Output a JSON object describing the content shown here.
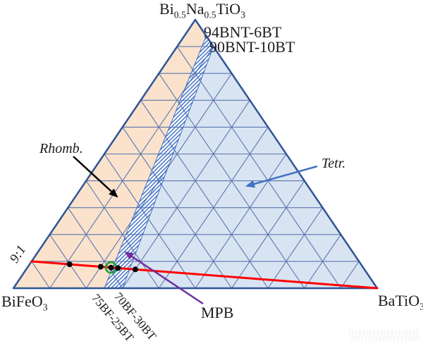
{
  "labels": {
    "top_vertex": "Bi0.5Na0.5TiO3",
    "left_vertex": "BiFeO3",
    "right_vertex": "BaTiO3",
    "composition_94": "94BNT-6BT",
    "composition_90": "90BNT-10BT",
    "composition_75": "75BF-25BT",
    "composition_70": "70BF-30BT",
    "rhomb": "Rhomb.",
    "tetr": "Tetr.",
    "mpb": "MPB",
    "ratio": "9:1"
  },
  "colors": {
    "rhombohedral_fill": "#FAE2CC",
    "tetragonal_fill": "#D9E4F2",
    "grid_line": "#5B76AE",
    "triangle_border": "#2F5597",
    "hatch_line": "#4472C4",
    "ratio_line": "#FF0000",
    "marker": "#000000",
    "highlight_ring": "#22A12C",
    "mpb_arrow": "#7030A0",
    "tetr_arrow": "#4472C4",
    "rhomb_arrow": "#000000",
    "text": "#1c1c1c"
  },
  "chart_data": {
    "type": "ternary-phase-diagram",
    "components": {
      "top": "Bi0.5Na0.5TiO3",
      "bottom_left": "BiFeO3",
      "bottom_right": "BaTiO3"
    },
    "composition_order": [
      "BNT",
      "BF",
      "BT"
    ],
    "grid_step": 0.1,
    "regions": [
      {
        "name": "Rhomb.",
        "style": "solid-orange",
        "polygon": [
          [
            1,
            0,
            0
          ],
          [
            0.94,
            0,
            0.06
          ],
          [
            0,
            0.75,
            0.25
          ],
          [
            0,
            1,
            0
          ]
        ]
      },
      {
        "name": "MPB",
        "style": "hatched",
        "polygon": [
          [
            0.94,
            0,
            0.06
          ],
          [
            0.9,
            0,
            0.1
          ],
          [
            0,
            0.7,
            0.3
          ],
          [
            0,
            0.75,
            0.25
          ]
        ]
      },
      {
        "name": "Tetr.",
        "style": "solid-blue",
        "polygon": [
          [
            0.9,
            0,
            0.1
          ],
          [
            0,
            0,
            1
          ],
          [
            0,
            0.7,
            0.3
          ]
        ]
      }
    ],
    "boundary_compositions": [
      {
        "label": "94BNT-6BT",
        "composition": [
          0.94,
          0,
          0.06
        ]
      },
      {
        "label": "90BNT-10BT",
        "composition": [
          0.9,
          0,
          0.1
        ]
      },
      {
        "label": "75BF-25BT",
        "composition": [
          0,
          0.75,
          0.25
        ]
      },
      {
        "label": "70BF-30BT",
        "composition": [
          0,
          0.7,
          0.3
        ]
      }
    ],
    "ratio_line": {
      "label": "9:1",
      "from": [
        0.1,
        0.9,
        0
      ],
      "to": [
        0,
        0,
        1
      ]
    },
    "data_points": [
      {
        "composition": [
          0.089,
          0.801,
          0.11
        ],
        "highlighted": false
      },
      {
        "composition": [
          0.08,
          0.72,
          0.2
        ],
        "highlighted": false
      },
      {
        "composition": [
          0.077,
          0.693,
          0.23
        ],
        "highlighted": true
      },
      {
        "composition": [
          0.075,
          0.675,
          0.25
        ],
        "highlighted": false
      },
      {
        "composition": [
          0.07,
          0.63,
          0.3
        ],
        "highlighted": false
      }
    ],
    "annotations": [
      {
        "text": "Rhomb.",
        "arrow_color": "#000000",
        "points_to": "orange rhombohedral region"
      },
      {
        "text": "Tetr.",
        "arrow_color": "#4472C4",
        "points_to": "blue tetragonal region"
      },
      {
        "text": "MPB",
        "arrow_color": "#7030A0",
        "points_to": "hatched band"
      },
      {
        "text": "9:1",
        "points_to": "red constant-ratio line to BaTiO3"
      }
    ],
    "legend_position": "none",
    "grid": true
  }
}
